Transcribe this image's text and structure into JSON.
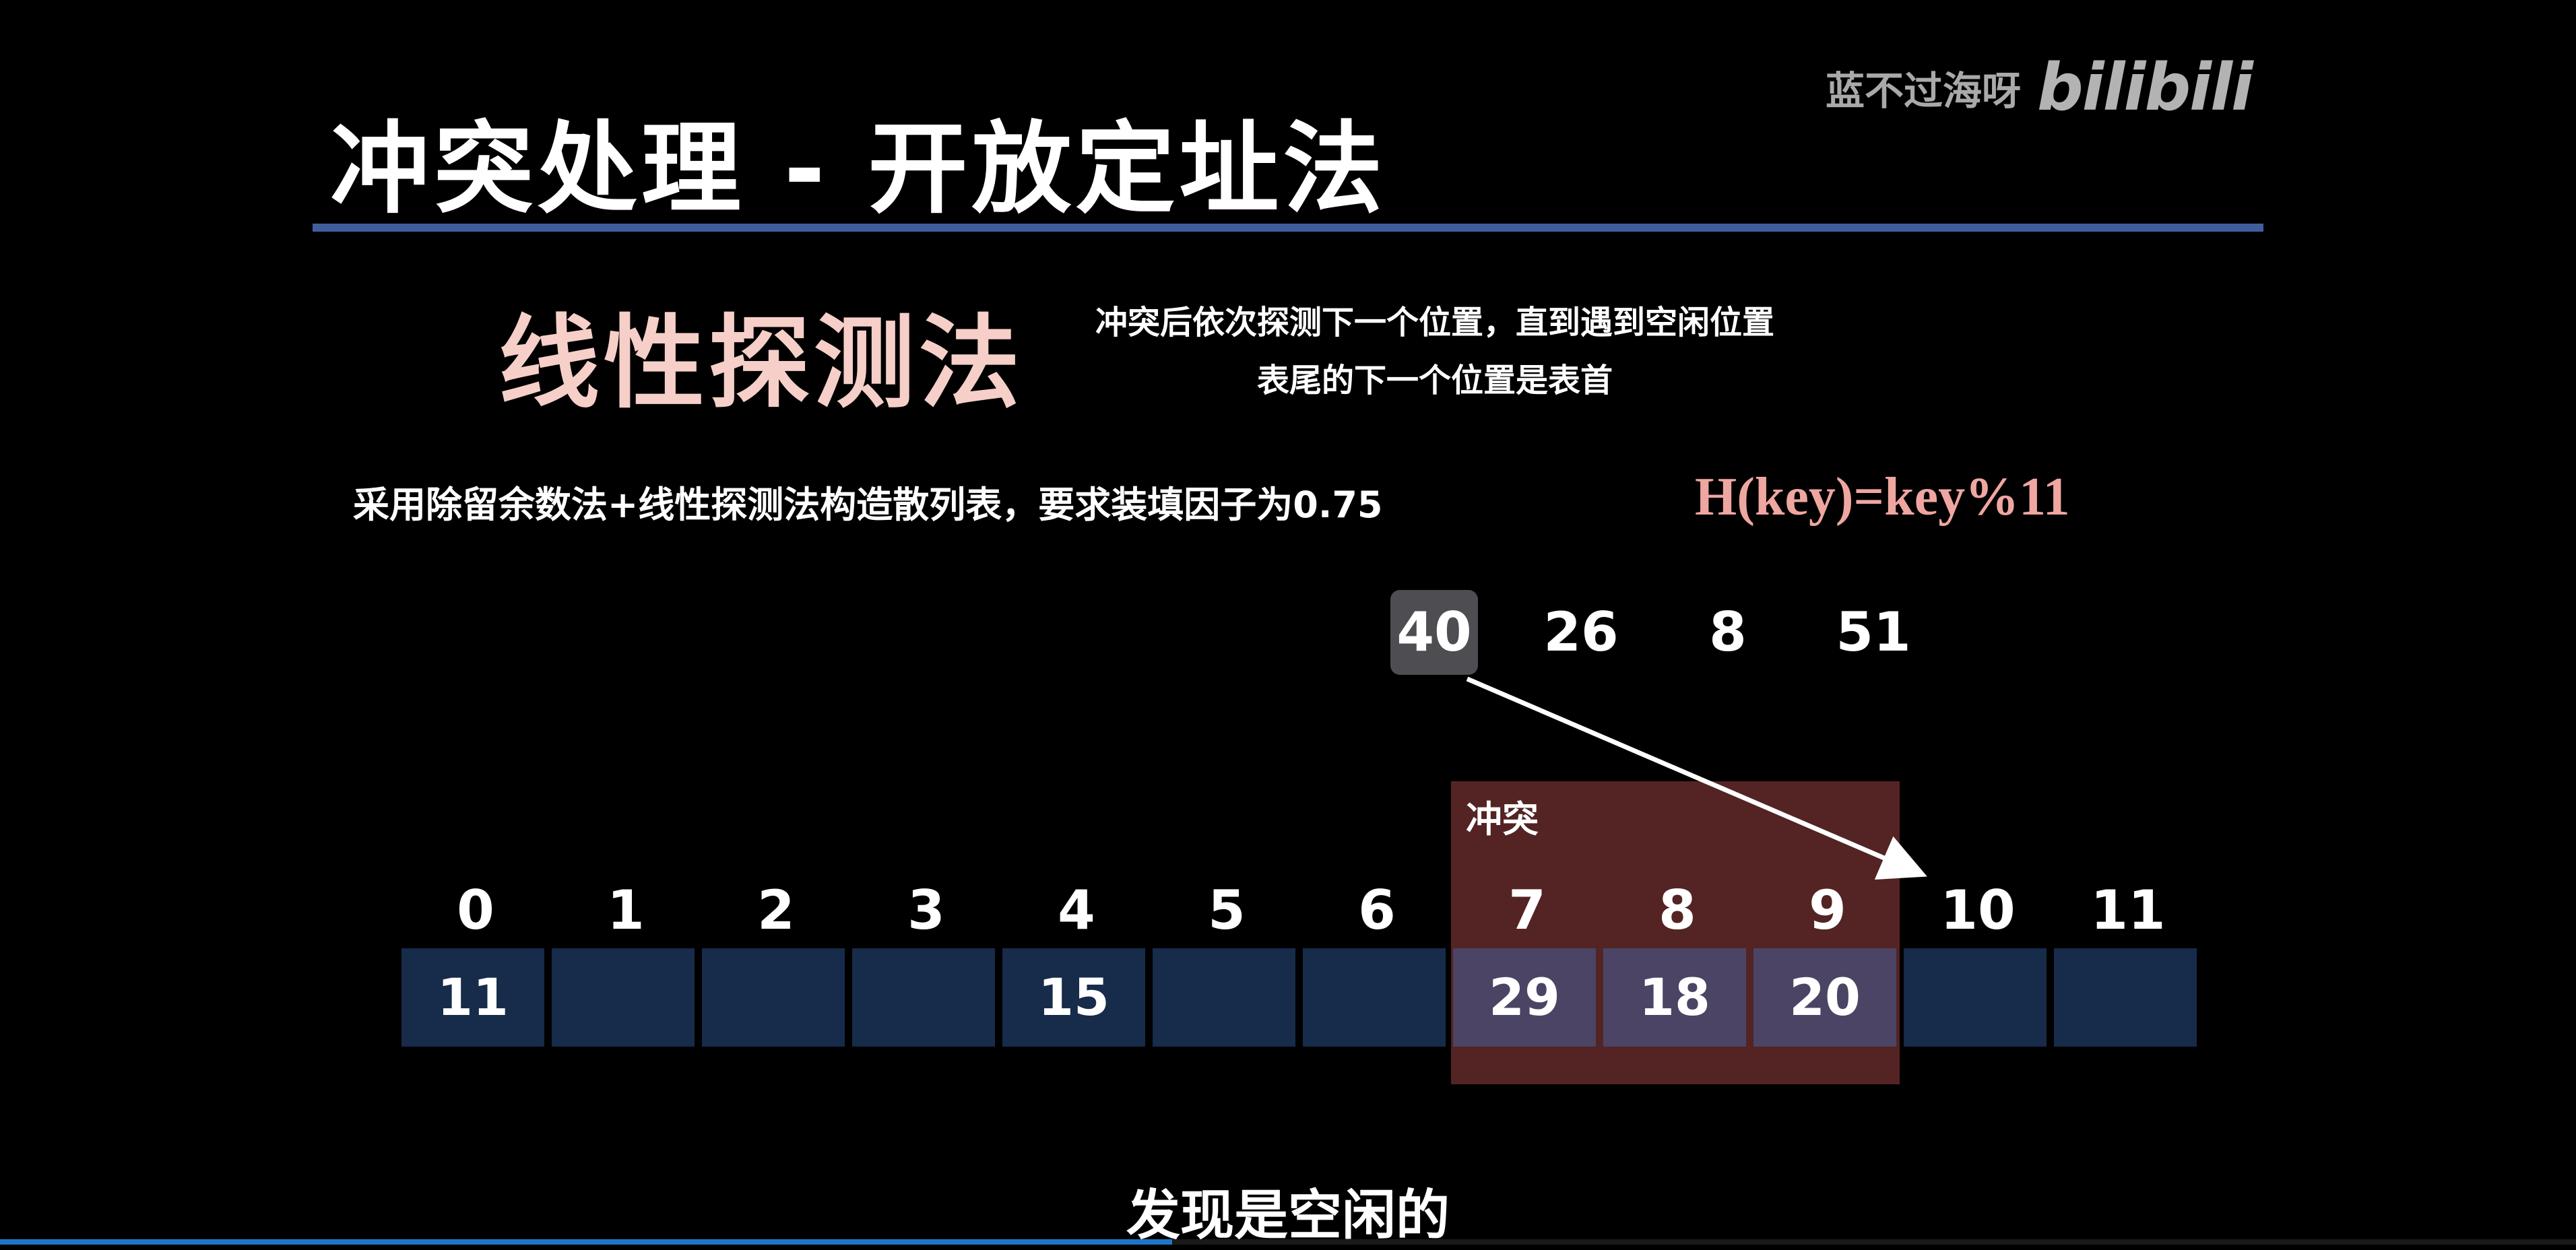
{
  "slide": {
    "title": "冲突处理 - 开放定址法",
    "watermark_author": "蓝不过海呀",
    "watermark_logo": "bilibili"
  },
  "method": {
    "title": "线性探测法",
    "desc_line1": "冲突后依次探测下一个位置，直到遇到空闲位置",
    "desc_line2": "表尾的下一个位置是表首"
  },
  "problem": "采用除留余数法+线性探测法构造散列表，要求装填因子为0.75",
  "hash_formula": "H(key)=key%11",
  "keys": [
    {
      "value": "40",
      "active": true
    },
    {
      "value": "26",
      "active": false
    },
    {
      "value": "8",
      "active": false
    },
    {
      "value": "51",
      "active": false
    }
  ],
  "conflict_label": "冲突",
  "table": {
    "indices": [
      "0",
      "1",
      "2",
      "3",
      "4",
      "5",
      "6",
      "7",
      "8",
      "9",
      "10",
      "11"
    ],
    "active_index": 10,
    "cells": [
      "11",
      "",
      "",
      "",
      "15",
      "",
      "",
      "29",
      "18",
      "20",
      "",
      ""
    ],
    "highlighted_cells": [
      7,
      8,
      9
    ]
  },
  "colors": {
    "title_rule": "#3f5e9c",
    "method_title": "#f6cfc9",
    "formula": "#f0a6a0",
    "cell": "#172b4a",
    "cell_highlight": "#4b4464",
    "conflict_zone": "#532423",
    "progress": "#1d75c9"
  },
  "subtitle": "发现是空闲的",
  "progress": 0.455
}
